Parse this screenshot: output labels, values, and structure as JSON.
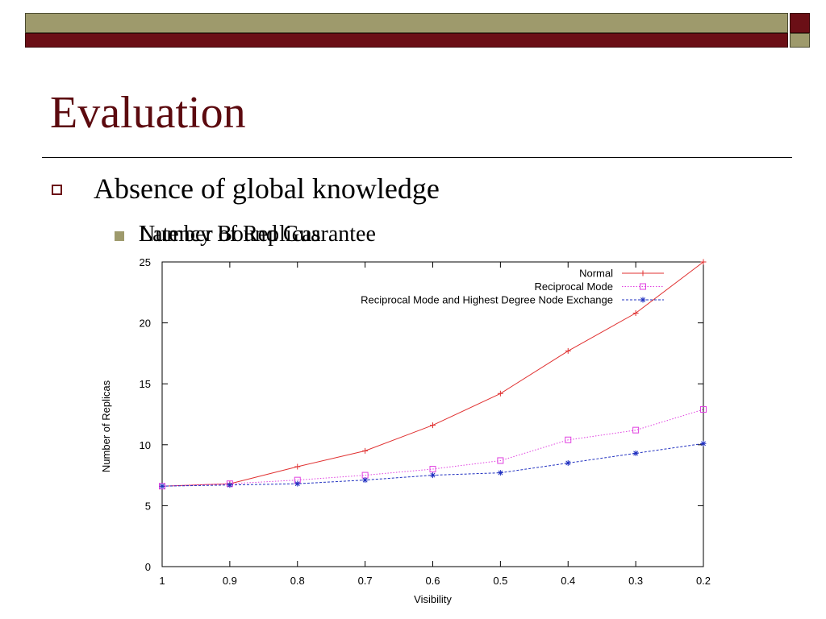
{
  "slide": {
    "title": "Evaluation",
    "bullet1": "Absence of global knowledge",
    "bullet2_a": "Number of Replicas",
    "bullet2_b": "Latency Bound Guarantee"
  },
  "colors": {
    "bar_olive": "#9e9a6c",
    "bar_maroon": "#6b0f16",
    "title": "#5c0a0f",
    "series_normal": "#e03030",
    "series_reciprocal": "#e040e0",
    "series_highest": "#2030c0"
  },
  "chart_data": {
    "type": "line",
    "xlabel": "Visibility",
    "ylabel": "Number of Replicas",
    "x": [
      1,
      0.9,
      0.8,
      0.7,
      0.6,
      0.5,
      0.4,
      0.3,
      0.2
    ],
    "x_tick_labels": [
      "1",
      "0.9",
      "0.8",
      "0.7",
      "0.6",
      "0.5",
      "0.4",
      "0.3",
      "0.2"
    ],
    "xlim": [
      1,
      0.2
    ],
    "x_reversed": true,
    "ylim": [
      0,
      25
    ],
    "y_ticks": [
      0,
      5,
      10,
      15,
      20,
      25
    ],
    "grid": false,
    "legend_position": "top-right",
    "series": [
      {
        "name": "Normal",
        "marker": "plus",
        "line": "solid",
        "color": "#e03030",
        "values": [
          6.6,
          6.8,
          8.2,
          9.5,
          11.6,
          14.2,
          17.7,
          20.8,
          25.0
        ]
      },
      {
        "name": "Reciprocal Mode",
        "marker": "square",
        "line": "dotted",
        "color": "#e040e0",
        "values": [
          6.6,
          6.8,
          7.1,
          7.5,
          8.0,
          8.7,
          10.4,
          11.2,
          12.9
        ]
      },
      {
        "name": "Reciprocal Mode and Highest Degree Node Exchange",
        "marker": "star",
        "line": "dashed",
        "color": "#2030c0",
        "values": [
          6.6,
          6.7,
          6.8,
          7.1,
          7.5,
          7.7,
          8.5,
          9.3,
          10.1
        ]
      }
    ]
  }
}
